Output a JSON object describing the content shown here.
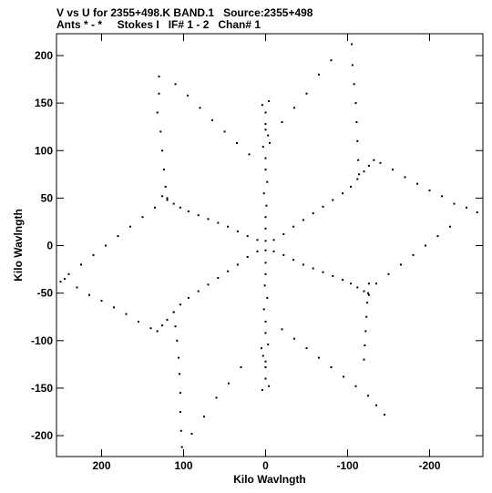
{
  "header": {
    "line1": "V vs U for 2355+498.K BAND.1   Source:2355+498",
    "line2": "Ants * - *     Stokes I   IF# 1 - 2   Chan# 1"
  },
  "chart_data": {
    "type": "scatter",
    "title": "V vs U for 2355+498.K BAND.1   Source:2355+498",
    "subtitle": "Ants * - *     Stokes I   IF# 1 - 2   Chan# 1",
    "xlabel": "Kilo Wavlngth",
    "ylabel": "Kilo Wavlngth",
    "xlim": [
      255,
      -265
    ],
    "ylim": [
      -222,
      223
    ],
    "x_reversed": true,
    "grid": false,
    "xticks": [
      200,
      100,
      0,
      -100,
      -200
    ],
    "yticks": [
      200,
      150,
      100,
      50,
      0,
      -50,
      -100,
      -150,
      -200
    ],
    "xtick_labels": [
      "200",
      "100",
      "0",
      "-100",
      "-200"
    ],
    "ytick_labels": [
      "200",
      "150",
      "100",
      "50",
      "0",
      "-50",
      "-100",
      "-150",
      "-200"
    ],
    "point_groups": [
      {
        "name": "arm-n",
        "x": [
          0,
          0,
          0,
          -1,
          2,
          -2,
          0,
          0,
          3,
          -3,
          0,
          0,
          4,
          -4,
          0,
          -5
        ],
        "y": [
          5,
          18,
          30,
          42,
          55,
          67,
          80,
          92,
          104,
          116,
          128,
          140,
          148,
          152,
          122,
          108
        ]
      },
      {
        "name": "arm-s",
        "x": [
          0,
          0,
          0,
          1,
          -2,
          2,
          0,
          0,
          -3,
          3,
          0,
          0,
          -4,
          4,
          0,
          5
        ],
        "y": [
          -5,
          -18,
          -30,
          -42,
          -55,
          -67,
          -80,
          -92,
          -104,
          -116,
          -128,
          -140,
          -148,
          -152,
          -122,
          -108
        ]
      },
      {
        "name": "arm-ne",
        "x": [
          -10,
          -22,
          -34,
          -46,
          -58,
          -70,
          -82,
          -94,
          -104,
          -112,
          -120,
          -126,
          -132
        ],
        "y": [
          6,
          12,
          20,
          27,
          34,
          41,
          48,
          55,
          62,
          70,
          78,
          84,
          90
        ]
      },
      {
        "name": "arm-ne-outer",
        "x": [
          -140,
          -155,
          -170,
          -185,
          -200,
          -215,
          -230,
          -245,
          -258
        ],
        "y": [
          87,
          80,
          72,
          65,
          58,
          52,
          44,
          40,
          35
        ]
      },
      {
        "name": "arm-sw",
        "x": [
          10,
          22,
          34,
          46,
          58,
          70,
          82,
          94,
          104,
          112,
          120,
          126,
          132
        ],
        "y": [
          -6,
          -12,
          -20,
          -27,
          -34,
          -41,
          -48,
          -55,
          -62,
          -70,
          -78,
          -84,
          -90
        ]
      },
      {
        "name": "arm-sw-outer",
        "x": [
          140,
          155,
          170,
          185,
          200,
          215,
          230,
          245
        ],
        "y": [
          -87,
          -80,
          -72,
          -65,
          -58,
          -52,
          -44,
          -35
        ]
      },
      {
        "name": "arm-nw",
        "x": [
          10,
          22,
          34,
          46,
          58,
          70,
          82,
          94,
          104,
          112,
          120,
          126
        ],
        "y": [
          6,
          10,
          15,
          20,
          24,
          28,
          32,
          36,
          40,
          44,
          48,
          52
        ]
      },
      {
        "name": "arm-nw-outer",
        "x": [
          135,
          150,
          165,
          180,
          195,
          210,
          225,
          240,
          250
        ],
        "y": [
          40,
          30,
          20,
          10,
          0,
          -10,
          -20,
          -30,
          -38
        ]
      },
      {
        "name": "arm-se",
        "x": [
          -10,
          -22,
          -34,
          -46,
          -58,
          -70,
          -82,
          -94,
          -104,
          -112,
          -120,
          -126
        ],
        "y": [
          -6,
          -10,
          -15,
          -20,
          -24,
          -28,
          -32,
          -36,
          -40,
          -44,
          -48,
          -52
        ]
      },
      {
        "name": "arm-se-outer",
        "x": [
          -135,
          -150,
          -165,
          -180,
          -195,
          -210,
          -225
        ],
        "y": [
          -40,
          -30,
          -20,
          -10,
          0,
          10,
          20
        ]
      },
      {
        "name": "branch-ul",
        "x": [
          130,
          130,
          132,
          128,
          126,
          124,
          122,
          120
        ],
        "y": [
          178,
          160,
          140,
          120,
          100,
          80,
          62,
          50
        ]
      },
      {
        "name": "branch-ul-diag",
        "x": [
          110,
          95,
          80,
          65,
          50,
          35,
          20
        ],
        "y": [
          170,
          158,
          145,
          132,
          120,
          108,
          96
        ]
      },
      {
        "name": "branch-ur",
        "x": [
          -105,
          -106,
          -108,
          -110,
          -111,
          -112,
          -113,
          -114
        ],
        "y": [
          212,
          190,
          170,
          150,
          130,
          110,
          90,
          75
        ]
      },
      {
        "name": "branch-ur-diag",
        "x": [
          -80,
          -65,
          -50,
          -35,
          -20
        ],
        "y": [
          195,
          180,
          160,
          145,
          130
        ]
      },
      {
        "name": "branch-ll",
        "x": [
          102,
          103,
          104,
          104,
          105,
          106,
          108,
          110,
          112
        ],
        "y": [
          -212,
          -195,
          -175,
          -155,
          -135,
          -118,
          -100,
          -85,
          -70
        ]
      },
      {
        "name": "branch-ll-diag",
        "x": [
          90,
          75,
          60,
          45,
          30
        ],
        "y": [
          -198,
          -180,
          -160,
          -145,
          -128
        ]
      },
      {
        "name": "branch-lr",
        "x": [
          -120,
          -121,
          -122,
          -123,
          -124,
          -125,
          -126
        ],
        "y": [
          -120,
          -105,
          -90,
          -75,
          -60,
          -50,
          -40
        ]
      },
      {
        "name": "branch-lr-diag",
        "x": [
          -145,
          -135,
          -125,
          -110,
          -95,
          -80,
          -65,
          -50,
          -35,
          -20
        ],
        "y": [
          -178,
          -168,
          -158,
          -148,
          -138,
          -128,
          -118,
          -108,
          -98,
          -88
        ]
      }
    ]
  }
}
